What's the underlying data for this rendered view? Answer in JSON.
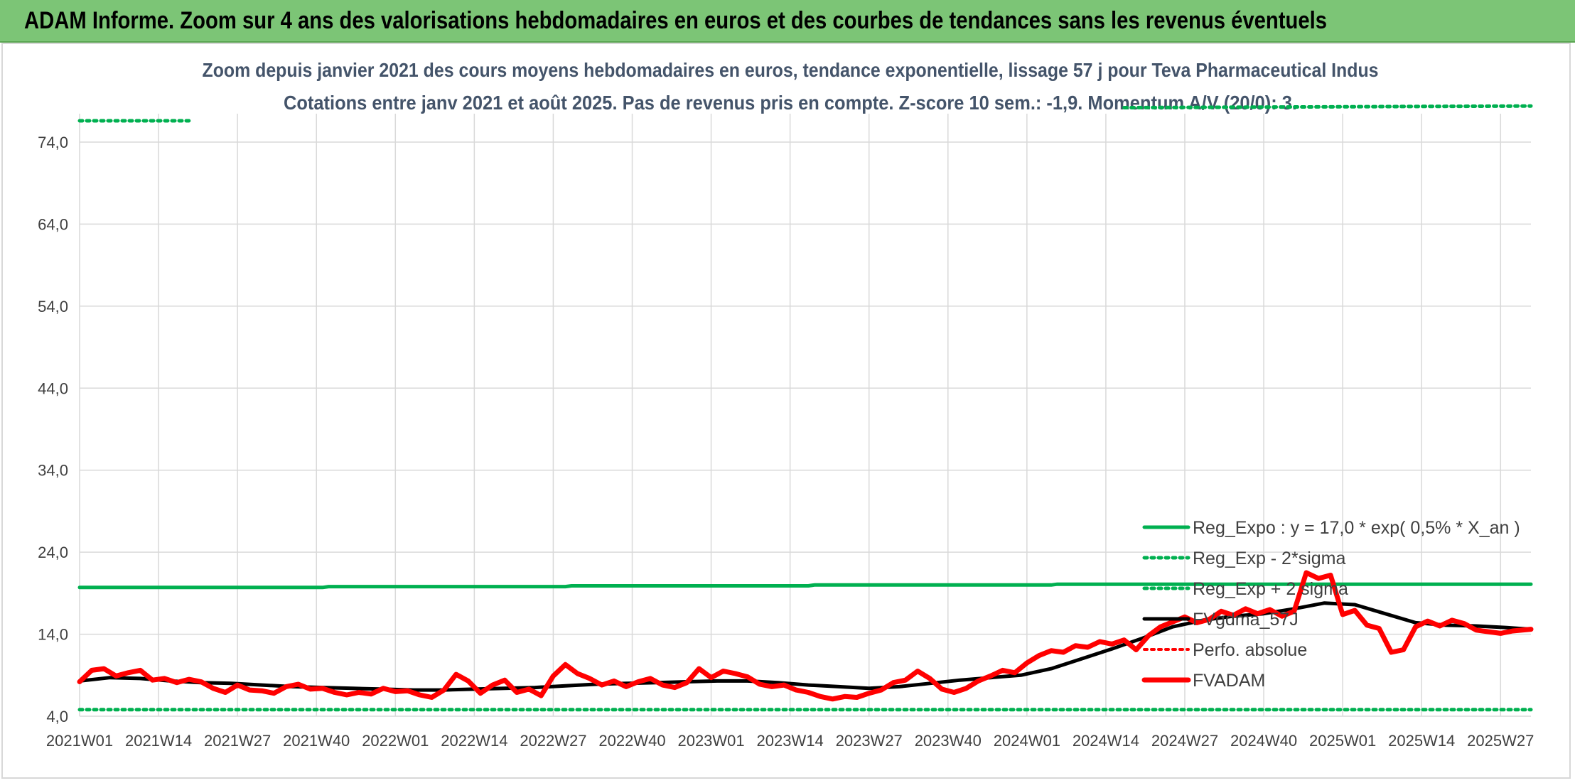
{
  "banner": {
    "title": "ADAM Informe. Zoom sur 4 ans des valorisations hebdomadaires en euros et des courbes de tendances sans les revenus éventuels"
  },
  "chart_data": {
    "type": "line",
    "title": "Zoom depuis janvier 2021 des cours moyens hebdomadaires en euros, tendance exponentielle, lissage 57 j pour Teva Pharmaceutical Indus",
    "subtitle": "Cotations entre janv 2021 et août 2025. Pas de revenus pris en compte. Z-score 10 sem.: -1,9. Momentum A/V (20/0): 3.",
    "xlabel": "",
    "ylabel": "",
    "ylim": [
      4.0,
      74.0
    ],
    "y_ticks": [
      "74,0",
      "64,0",
      "54,0",
      "44,0",
      "34,0",
      "24,0",
      "14,0",
      "4,0"
    ],
    "y_tick_values": [
      74,
      64,
      54,
      44,
      34,
      24,
      14,
      4
    ],
    "x_ticks": [
      "2021W01",
      "2021W14",
      "2021W27",
      "2021W40",
      "2022W01",
      "2022W14",
      "2022W27",
      "2022W40",
      "2023W01",
      "2023W14",
      "2023W27",
      "2023W40",
      "2024W01",
      "2024W14",
      "2024W27",
      "2024W40",
      "2025W01",
      "2025W14",
      "2025W27"
    ],
    "x_tick_weeks": [
      0,
      13,
      26,
      39,
      52,
      65,
      78,
      91,
      104,
      117,
      130,
      143,
      156,
      169,
      182,
      195,
      208,
      221,
      234
    ],
    "x_max_week": 239,
    "grid": true,
    "legend_position": "right",
    "colors": {
      "green": "#00b050",
      "black": "#000000",
      "red": "#ff0000",
      "grid": "#d9d9d9",
      "text": "#404040",
      "title": "#44546a"
    },
    "series": [
      {
        "name": "Reg_Expo : y = 17,0 * exp( 0,5% *  X_an )",
        "style": "solid-green",
        "x": [
          0,
          40,
          41,
          80,
          81,
          120,
          121,
          160,
          161,
          239
        ],
        "values": [
          19.7,
          19.7,
          19.8,
          19.8,
          19.9,
          19.9,
          20.0,
          20.0,
          20.1,
          20.1
        ]
      },
      {
        "name": "Reg_Exp - 2*sigma",
        "style": "dotted-green",
        "x": [
          0,
          239
        ],
        "values": [
          4.8,
          4.8
        ]
      },
      {
        "name": "Reg_Exp + 2 sigma",
        "style": "dotted-green",
        "x": [
          0,
          18,
          172,
          239
        ],
        "values": [
          76.6,
          76.6,
          78.2,
          78.4
        ]
      },
      {
        "name": "FVgdma_57J",
        "style": "solid-black",
        "x": [
          0,
          5,
          10,
          15,
          20,
          25,
          30,
          35,
          40,
          45,
          50,
          55,
          60,
          65,
          70,
          75,
          80,
          85,
          90,
          95,
          100,
          105,
          110,
          115,
          120,
          125,
          130,
          135,
          140,
          145,
          150,
          155,
          160,
          165,
          170,
          175,
          180,
          185,
          190,
          195,
          200,
          205,
          210,
          215,
          220,
          225,
          230,
          235,
          239
        ],
        "values": [
          8.3,
          8.7,
          8.6,
          8.3,
          8.1,
          8.0,
          7.8,
          7.6,
          7.5,
          7.4,
          7.3,
          7.2,
          7.2,
          7.3,
          7.4,
          7.5,
          7.7,
          7.9,
          8.0,
          8.1,
          8.2,
          8.3,
          8.3,
          8.1,
          7.8,
          7.6,
          7.4,
          7.6,
          8.0,
          8.4,
          8.7,
          9.0,
          9.8,
          11.0,
          12.2,
          13.5,
          14.9,
          15.7,
          16.2,
          16.5,
          17.1,
          17.8,
          17.6,
          16.5,
          15.4,
          15.1,
          15.0,
          14.8,
          14.6
        ]
      },
      {
        "name": "Perfo. absolue",
        "style": "dotted-red",
        "x": [],
        "values": []
      },
      {
        "name": "FVADAM",
        "style": "solid-red",
        "x": [
          0,
          2,
          4,
          6,
          8,
          10,
          12,
          14,
          16,
          18,
          20,
          22,
          24,
          26,
          28,
          30,
          32,
          34,
          36,
          38,
          40,
          42,
          44,
          46,
          48,
          50,
          52,
          54,
          56,
          58,
          60,
          62,
          64,
          66,
          68,
          70,
          72,
          74,
          76,
          78,
          80,
          82,
          84,
          86,
          88,
          90,
          92,
          94,
          96,
          98,
          100,
          102,
          104,
          106,
          108,
          110,
          112,
          114,
          116,
          118,
          120,
          122,
          124,
          126,
          128,
          130,
          132,
          134,
          136,
          138,
          140,
          142,
          144,
          146,
          148,
          150,
          152,
          154,
          156,
          158,
          160,
          162,
          164,
          166,
          168,
          170,
          172,
          174,
          176,
          178,
          180,
          182,
          184,
          186,
          188,
          190,
          192,
          194,
          196,
          198,
          200,
          202,
          204,
          206,
          208,
          210,
          212,
          214,
          216,
          218,
          220,
          222,
          224,
          226,
          228,
          230,
          232,
          234,
          236,
          239
        ],
        "values": [
          8.2,
          9.6,
          9.8,
          8.9,
          9.3,
          9.6,
          8.4,
          8.6,
          8.1,
          8.5,
          8.2,
          7.4,
          6.9,
          7.8,
          7.2,
          7.1,
          6.8,
          7.6,
          7.9,
          7.3,
          7.4,
          6.9,
          6.6,
          6.9,
          6.7,
          7.4,
          7.0,
          7.1,
          6.6,
          6.3,
          7.2,
          9.1,
          8.3,
          6.8,
          7.8,
          8.4,
          6.9,
          7.3,
          6.5,
          8.9,
          10.3,
          9.2,
          8.6,
          7.8,
          8.3,
          7.6,
          8.2,
          8.6,
          7.8,
          7.5,
          8.1,
          9.8,
          8.7,
          9.5,
          9.2,
          8.8,
          7.9,
          7.6,
          7.8,
          7.2,
          6.9,
          6.4,
          6.1,
          6.4,
          6.3,
          6.8,
          7.2,
          8.1,
          8.4,
          9.5,
          8.6,
          7.3,
          6.9,
          7.4,
          8.3,
          8.9,
          9.6,
          9.3,
          10.5,
          11.4,
          12.0,
          11.8,
          12.6,
          12.4,
          13.1,
          12.8,
          13.3,
          12.1,
          13.8,
          14.9,
          15.5,
          16.1,
          15.4,
          15.8,
          16.8,
          16.3,
          17.1,
          16.5,
          17.0,
          16.2,
          16.8,
          21.5,
          20.8,
          21.2,
          16.4,
          16.9,
          15.1,
          14.7,
          11.8,
          12.1,
          14.9,
          15.6,
          15.0,
          15.7,
          15.3,
          14.5,
          14.3,
          14.1,
          14.4,
          14.6
        ]
      }
    ]
  }
}
